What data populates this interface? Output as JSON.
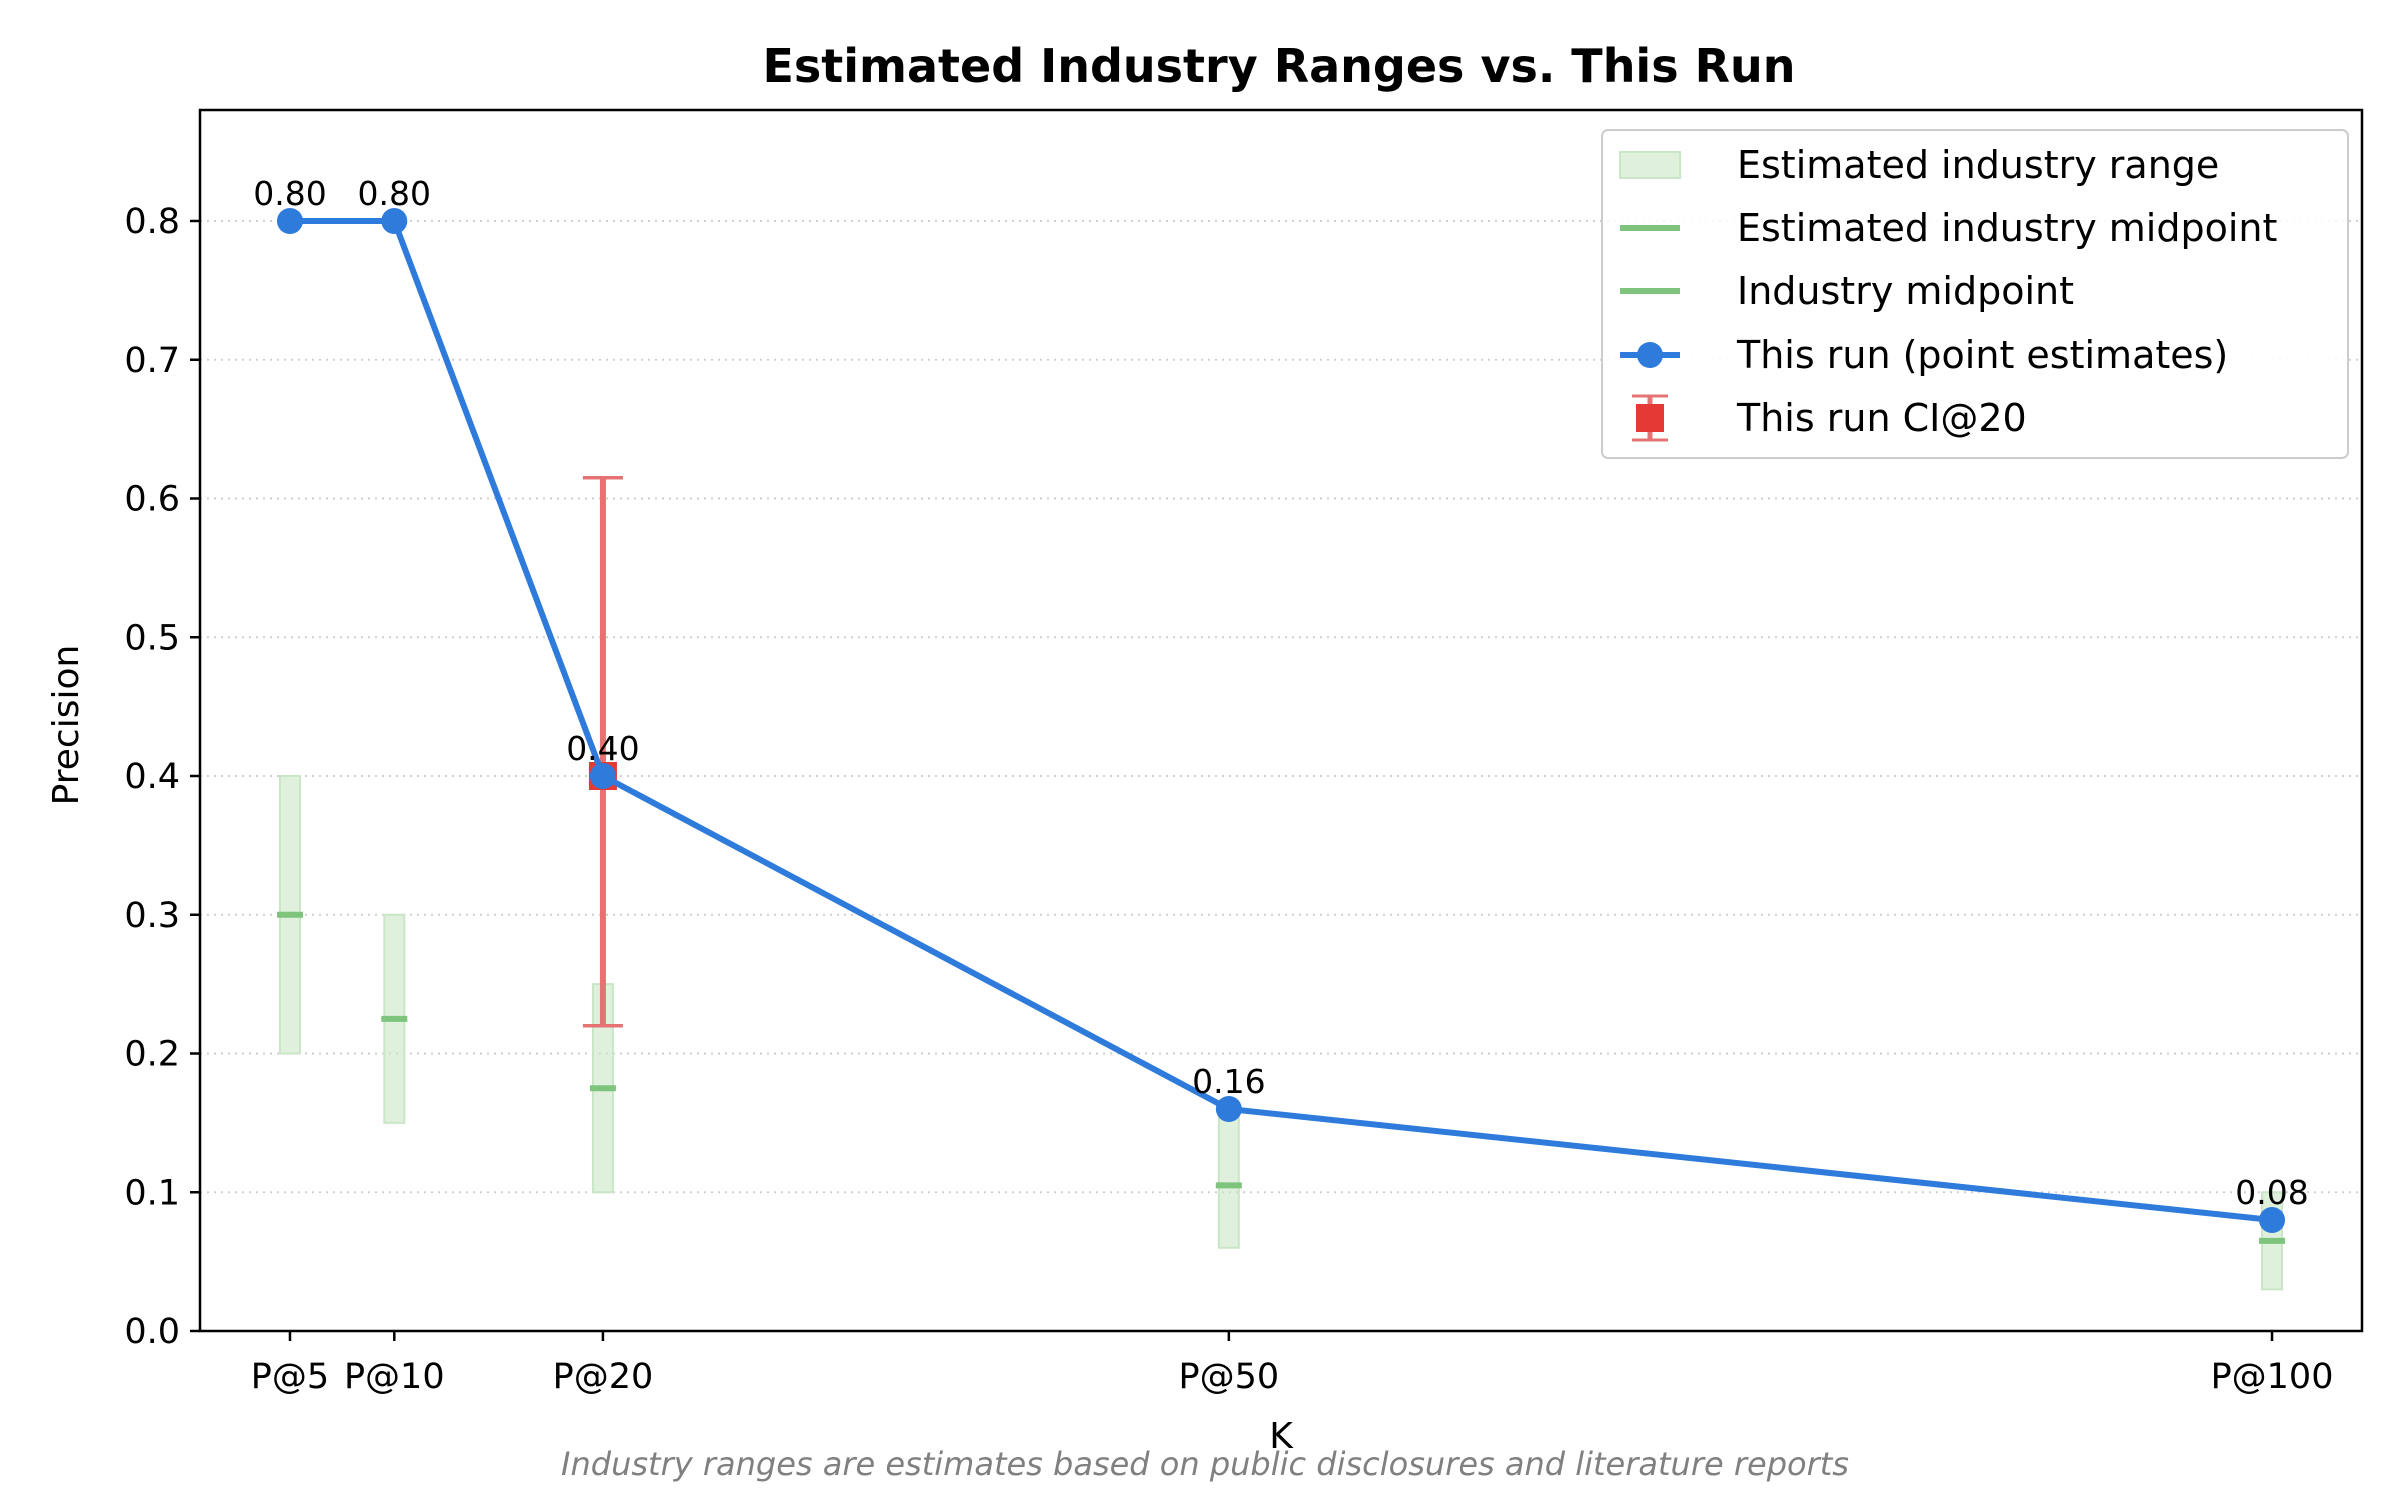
{
  "chart_data": {
    "type": "line",
    "title": "Estimated Industry Ranges vs. This Run",
    "xlabel": "K",
    "ylabel": "Precision",
    "footnote": "Industry ranges are estimates based on public disclosures and literature reports",
    "k_values": [
      5,
      10,
      20,
      50,
      100
    ],
    "categories": [
      "P@5",
      "P@10",
      "P@20",
      "P@50",
      "P@100"
    ],
    "ylim": [
      0,
      0.88
    ],
    "yticks": [
      0.0,
      0.1,
      0.2,
      0.3,
      0.4,
      0.5,
      0.6,
      0.7,
      0.8
    ],
    "ytick_labels": [
      "0.0",
      "0.1",
      "0.2",
      "0.3",
      "0.4",
      "0.5",
      "0.6",
      "0.7",
      "0.8"
    ],
    "grid": "horizontal dotted",
    "legend_position": "top-right",
    "series": [
      {
        "name": "This run (point estimates)",
        "values": [
          0.8,
          0.8,
          0.4,
          0.16,
          0.08
        ],
        "labels": [
          "0.80",
          "0.80",
          "0.40",
          "0.16",
          "0.08"
        ],
        "color": "#2e7bdc"
      }
    ],
    "industry_range": {
      "name": "Estimated industry range",
      "low": [
        0.2,
        0.15,
        0.1,
        0.06,
        0.03
      ],
      "high": [
        0.4,
        0.3,
        0.25,
        0.16,
        0.1
      ],
      "color": "#c9e6c6"
    },
    "industry_midpoint": {
      "name": "Estimated industry midpoint",
      "values": [
        0.3,
        0.225,
        0.175,
        0.105,
        0.065
      ],
      "color": "#7ec47c"
    },
    "industry_midpoint_alt": {
      "name": "Industry midpoint",
      "color": "#7ec47c"
    },
    "ci": {
      "name": "This run CI@20",
      "k": 20,
      "value": 0.4,
      "low": 0.22,
      "high": 0.615,
      "color": "#e57373",
      "marker_color": "#e53935"
    }
  }
}
